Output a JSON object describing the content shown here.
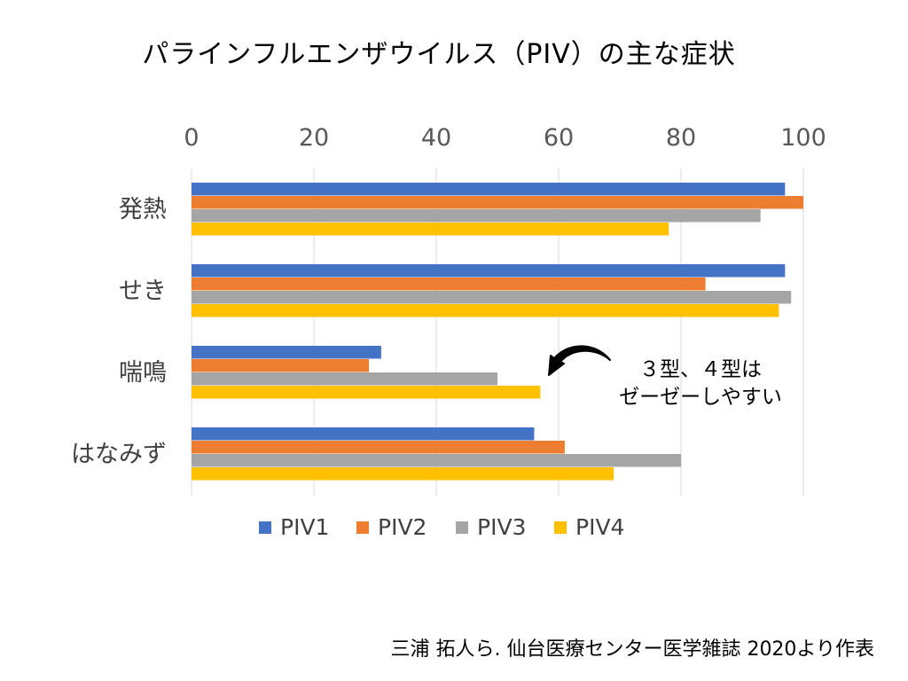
{
  "chart_data": {
    "type": "bar",
    "orientation": "horizontal",
    "title": "パラインフルエンザウイルス（PIV）の主な症状",
    "categories": [
      "発熱",
      "せき",
      "喘鳴",
      "はなみず"
    ],
    "series": [
      {
        "name": "PIV1",
        "color": "#4472C4",
        "values": [
          97,
          97,
          31,
          56
        ]
      },
      {
        "name": "PIV2",
        "color": "#ED7D31",
        "values": [
          100,
          84,
          29,
          61
        ]
      },
      {
        "name": "PIV3",
        "color": "#A5A5A5",
        "values": [
          93,
          98,
          50,
          80
        ]
      },
      {
        "name": "PIV4",
        "color": "#FFC000",
        "values": [
          78,
          96,
          57,
          69
        ]
      }
    ],
    "xlim": [
      0,
      100
    ],
    "x_ticks": [
      0,
      20,
      40,
      60,
      80,
      100
    ],
    "x_axis_position": "top",
    "grid": true,
    "legend_position": "bottom",
    "xlabel": "",
    "ylabel": ""
  },
  "annotation": {
    "line1": "３型、４型は",
    "line2": "ゼーゼーしやすい"
  },
  "source": "三浦 拓人ら. 仙台医療センター医学雑誌 2020より作表",
  "colors": {
    "grid": "#D9D9D9",
    "tick_text": "#595959",
    "arrow": "#000000"
  }
}
